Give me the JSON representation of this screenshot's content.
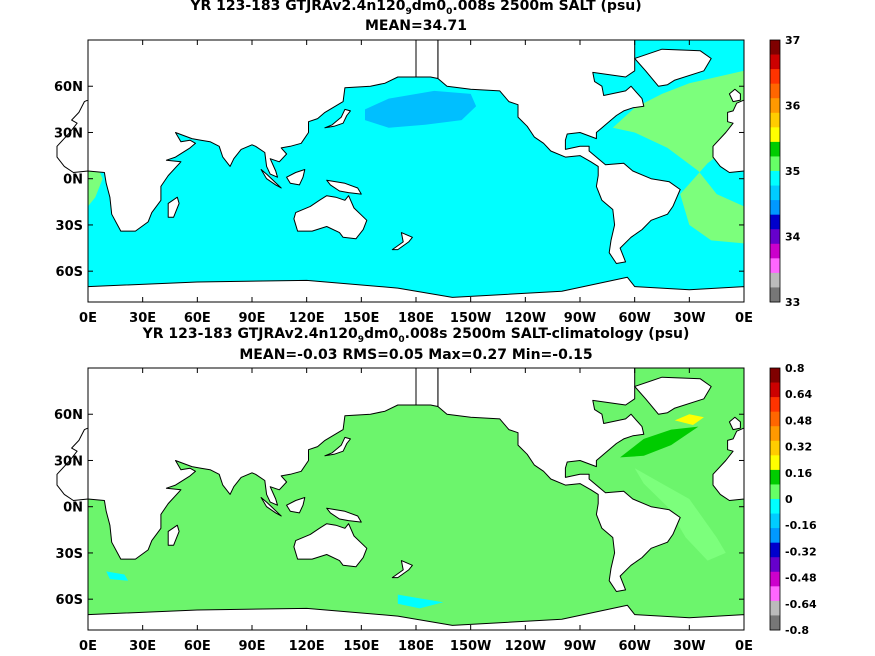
{
  "colors": {
    "ocean_top": "#00ffff",
    "pacific_fresh": "#00bfff",
    "atlantic_salty": "#7cff7c",
    "ocean_bottom": "#6cf56c",
    "land": "#ffffff",
    "coast": "#000000"
  },
  "chart_data": [
    {
      "type": "heatmap",
      "title_prefix": "YR 123-183 GTJRAv2.4n120",
      "title_sub1": "9",
      "title_mid": "dm0",
      "title_sub2": "0",
      "title_suffix": ".008s 2500m SALT (psu)",
      "stats": "MEAN=34.71",
      "x_ticks": [
        "0E",
        "30E",
        "60E",
        "90E",
        "120E",
        "150E",
        "180E",
        "150W",
        "120W",
        "90W",
        "60W",
        "30W",
        "0E"
      ],
      "y_ticks": [
        "60N",
        "30N",
        "0N",
        "30S",
        "60S"
      ],
      "colorbar": {
        "labels": [
          "37",
          "36",
          "35",
          "34",
          "33"
        ],
        "colors": [
          "#7f0000",
          "#cc0000",
          "#ff3300",
          "#ff6600",
          "#ff9900",
          "#ffcc00",
          "#ffff00",
          "#00cc00",
          "#66ff66",
          "#00ffff",
          "#00ccff",
          "#0099ff",
          "#0000cc",
          "#6600cc",
          "#cc00cc",
          "#ff66ff",
          "#bbbbbb",
          "#777777"
        ]
      }
    },
    {
      "type": "heatmap",
      "title_prefix": "YR 123-183 GTJRAv2.4n120",
      "title_sub1": "9",
      "title_mid": "dm0",
      "title_sub2": "0",
      "title_suffix": ".008s 2500m SALT-climatology (psu)",
      "stats": "MEAN=-0.03   RMS=0.05   Max=0.27   Min=-0.15",
      "x_ticks": [
        "0E",
        "30E",
        "60E",
        "90E",
        "120E",
        "150E",
        "180E",
        "150W",
        "120W",
        "90W",
        "60W",
        "30W",
        "0E"
      ],
      "y_ticks": [
        "60N",
        "30N",
        "0N",
        "30S",
        "60S"
      ],
      "colorbar": {
        "labels": [
          "0.8",
          "0.64",
          "0.48",
          "0.32",
          "0.16",
          "0",
          "-0.16",
          "-0.32",
          "-0.48",
          "-0.64",
          "-0.8"
        ],
        "colors": [
          "#7f0000",
          "#cc0000",
          "#ff3300",
          "#ff6600",
          "#ff9900",
          "#ffcc00",
          "#ffff00",
          "#00cc00",
          "#66ff66",
          "#00ffff",
          "#00ccff",
          "#0099ff",
          "#0000cc",
          "#6600cc",
          "#cc00cc",
          "#ff66ff",
          "#bbbbbb",
          "#777777"
        ]
      }
    }
  ]
}
